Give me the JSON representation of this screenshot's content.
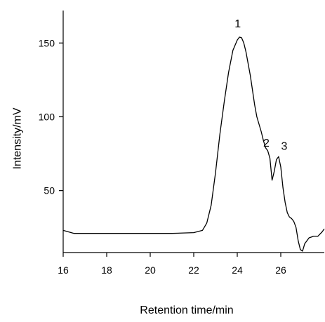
{
  "chart_data": {
    "type": "line",
    "title": "",
    "xlabel": "Retention time/min",
    "ylabel": "Intensity/mV",
    "xlim": [
      16,
      28
    ],
    "ylim": [
      8,
      172
    ],
    "xticks": [
      16,
      18,
      20,
      22,
      24,
      26
    ],
    "yticks": [
      50,
      100,
      150
    ],
    "grid": false,
    "legend": "none",
    "series": [
      {
        "x": [
          16.0,
          16.5,
          17.0,
          18.0,
          19.0,
          20.0,
          21.0,
          22.0,
          22.4,
          22.6,
          22.8,
          23.0,
          23.2,
          23.4,
          23.6,
          23.8,
          24.0,
          24.1,
          24.2,
          24.3,
          24.4,
          24.5,
          24.6,
          24.7,
          24.8,
          24.9,
          25.0,
          25.1,
          25.2,
          25.3,
          25.4,
          25.5,
          25.6,
          25.7,
          25.8,
          25.9,
          26.0,
          26.1,
          26.2,
          26.3,
          26.4,
          26.5,
          26.6,
          26.7,
          26.8,
          26.9,
          27.0,
          27.1,
          27.2,
          27.3,
          27.5,
          27.7,
          27.9,
          28.0
        ],
        "y": [
          23,
          21,
          21,
          21,
          21,
          21,
          21,
          21.5,
          23,
          28,
          40,
          62,
          88,
          110,
          130,
          145,
          152,
          154,
          153.5,
          150,
          144,
          136,
          128,
          118,
          108,
          100,
          95,
          90,
          84,
          79,
          77,
          72,
          57,
          63,
          71,
          73,
          66,
          52,
          42,
          35,
          32,
          31,
          29,
          25,
          16,
          10,
          9,
          14,
          16,
          18,
          19,
          19,
          22,
          24
        ]
      }
    ],
    "annotations": [
      {
        "text": "1",
        "x": 24.15,
        "y": 154
      },
      {
        "text": "2",
        "x": 25.4,
        "y": 77
      },
      {
        "text": "3",
        "x": 25.9,
        "y": 73
      }
    ]
  }
}
